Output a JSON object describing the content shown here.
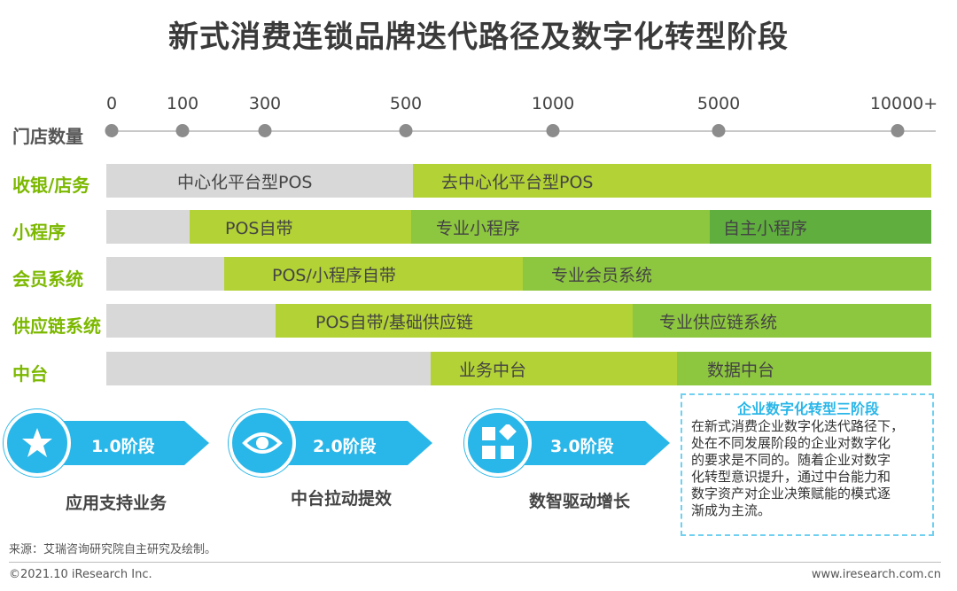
{
  "title": "新式消费连锁品牌迭代路径及数字化转型阶段",
  "axis": {
    "label": "门店数量",
    "ticks": [
      "0",
      "100",
      "300",
      "500",
      "1000",
      "5000",
      "10000+"
    ]
  },
  "rows": [
    {
      "label": "收银/店务",
      "segments": [
        "",
        "中心化平台型POS",
        "去中心化平台型POS"
      ]
    },
    {
      "label": "小程序",
      "segments": [
        "",
        "POS自带",
        "专业小程序",
        "自主小程序"
      ]
    },
    {
      "label": "会员系统",
      "segments": [
        "",
        "POS/小程序自带",
        "专业会员系统"
      ]
    },
    {
      "label": "供应链系统",
      "segments": [
        "",
        "POS自带/基础供应链",
        "专业供应链系统"
      ]
    },
    {
      "label": "中台",
      "segments": [
        "",
        "业务中台",
        "数据中台"
      ]
    }
  ],
  "stages": [
    {
      "label": "1.0阶段",
      "caption": "应用支持业务",
      "icon": "star-icon"
    },
    {
      "label": "2.0阶段",
      "caption": "中台拉动提效",
      "icon": "eye-icon"
    },
    {
      "label": "3.0阶段",
      "caption": "数智驱动增长",
      "icon": "blocks-icon"
    }
  ],
  "note": {
    "title": "企业数字化转型三阶段",
    "lines": [
      "在新式消费企业数字化迭代路径下，",
      "处在不同发展阶段的企业对数字化",
      "的要求是不同的。随着企业对数字",
      "化转型意识提升，通过中台能力和",
      "数字资产对企业决策赋能的模式逐",
      "渐成为主流。"
    ]
  },
  "source": "来源：艾瑞咨询研究院自主研究及绘制。",
  "copyright": "©2021.10 iResearch Inc.",
  "website": "www.iresearch.com.cn",
  "colors": {
    "accent_green": "#7cb800",
    "lime": "#b2d235",
    "mid_green": "#8dc63f",
    "dark_green": "#5fae3e",
    "gray": "#d8d8d8",
    "stage_blue": "#29b6e8"
  }
}
